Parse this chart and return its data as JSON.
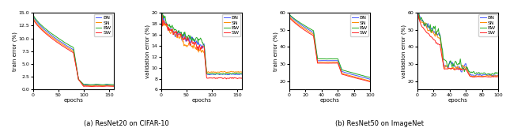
{
  "colors": {
    "BN": "#4455ff",
    "SN": "#ff8c00",
    "BW": "#22aa22",
    "SW": "#ff2222"
  },
  "labels": [
    "BN",
    "SN",
    "BW",
    "SW"
  ],
  "subplot_titles": [
    "(a) ResNet20 on CIFAR-10",
    "(b) ResNet50 on ImageNet"
  ],
  "ylabels": [
    "train error (%)",
    "validation error (%)",
    "train error (%)",
    "validation error (%)"
  ],
  "xlabel": "epochs",
  "cifar_train": {
    "xlim": [
      0,
      160
    ],
    "ylim": [
      0,
      15
    ]
  },
  "cifar_val": {
    "xlim": [
      0,
      160
    ],
    "ylim": [
      6,
      20
    ]
  },
  "imgnet_train": {
    "xlim": [
      0,
      100
    ],
    "ylim": [
      15,
      60
    ]
  },
  "imgnet_val": {
    "xlim": [
      0,
      100
    ],
    "ylim": [
      15,
      60
    ]
  },
  "linewidth": 0.7,
  "fontsize_label": 5.0,
  "fontsize_tick": 4.5,
  "fontsize_legend": 4.5,
  "fontsize_caption": 6.0
}
